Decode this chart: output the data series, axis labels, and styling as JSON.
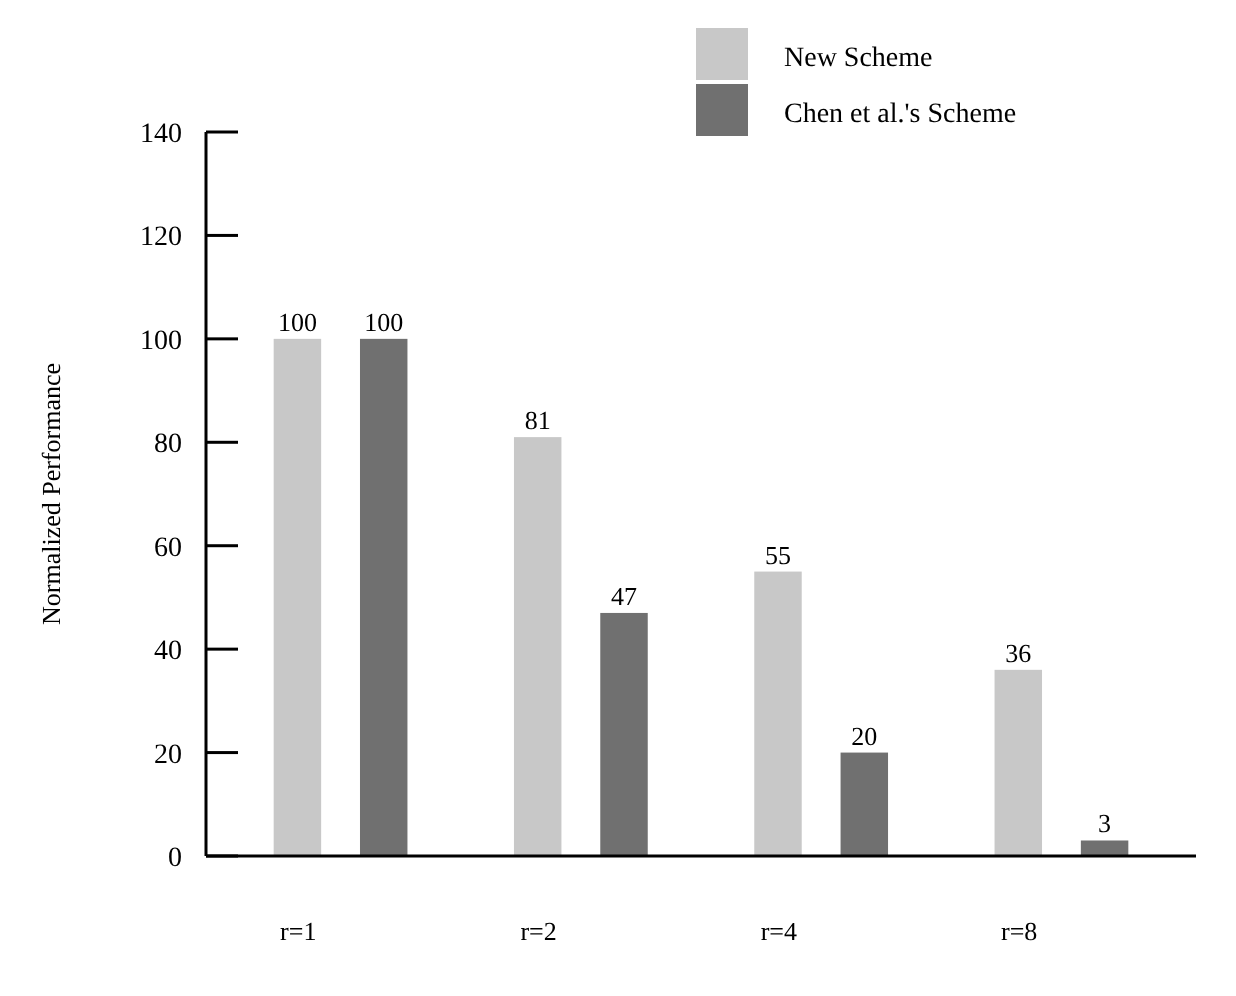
{
  "chart_data": {
    "type": "bar",
    "ylabel": "Normalized Performance",
    "categories": [
      "r=1",
      "r=2",
      "r=4",
      "r=8"
    ],
    "series": [
      {
        "name": "New Scheme",
        "color": "#c8c8c8",
        "values": [
          100,
          81,
          55,
          36
        ]
      },
      {
        "name": "Chen et al.'s Scheme",
        "color": "#707070",
        "values": [
          100,
          47,
          20,
          3
        ]
      }
    ],
    "ylim": [
      0,
      140
    ],
    "yticks": [
      0,
      20,
      40,
      60,
      80,
      100,
      120,
      140
    ],
    "data_labels": true,
    "grid": false,
    "legend": "top right"
  }
}
